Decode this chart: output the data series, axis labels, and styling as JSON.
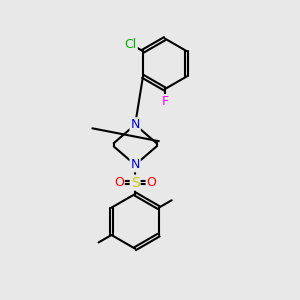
{
  "background_color": "#e8e8e8",
  "bond_color": "#000000",
  "bond_width": 1.5,
  "atom_colors": {
    "C": "#000000",
    "N": "#0000ff",
    "O": "#ff0000",
    "S": "#cccc00",
    "Cl": "#00aa00",
    "F": "#ff00ff"
  },
  "font_size": 9,
  "xlim": [
    0,
    10
  ],
  "ylim": [
    0,
    10
  ]
}
